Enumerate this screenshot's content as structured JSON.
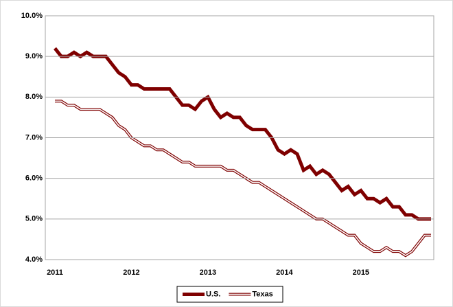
{
  "chart_data": {
    "type": "line",
    "categories": [
      "2011",
      null,
      null,
      null,
      null,
      null,
      null,
      null,
      null,
      null,
      null,
      null,
      "2012",
      null,
      null,
      null,
      null,
      null,
      null,
      null,
      null,
      null,
      null,
      null,
      "2013",
      null,
      null,
      null,
      null,
      null,
      null,
      null,
      null,
      null,
      null,
      null,
      "2014",
      null,
      null,
      null,
      null,
      null,
      null,
      null,
      null,
      null,
      null,
      null,
      "2015",
      null,
      null,
      null,
      null,
      null,
      null,
      null,
      null,
      null,
      null,
      null
    ],
    "series": [
      {
        "name": "U.S.",
        "color": "#7f0000",
        "line_style": "solid",
        "values": [
          9.2,
          9.0,
          9.0,
          9.1,
          9.0,
          9.1,
          9.0,
          9.0,
          9.0,
          8.8,
          8.6,
          8.5,
          8.3,
          8.3,
          8.2,
          8.2,
          8.2,
          8.2,
          8.2,
          8.0,
          7.8,
          7.8,
          7.7,
          7.9,
          8.0,
          7.7,
          7.5,
          7.6,
          7.5,
          7.5,
          7.3,
          7.2,
          7.2,
          7.2,
          7.0,
          6.7,
          6.6,
          6.7,
          6.6,
          6.2,
          6.3,
          6.1,
          6.2,
          6.1,
          5.9,
          5.7,
          5.8,
          5.6,
          5.7,
          5.5,
          5.5,
          5.4,
          5.5,
          5.3,
          5.3,
          5.1,
          5.1,
          5.0,
          5.0,
          5.0
        ]
      },
      {
        "name": "Texas",
        "color": "#7f0000",
        "line_style": "double",
        "values": [
          7.9,
          7.9,
          7.8,
          7.8,
          7.7,
          7.7,
          7.7,
          7.7,
          7.6,
          7.5,
          7.3,
          7.2,
          7.0,
          6.9,
          6.8,
          6.8,
          6.7,
          6.7,
          6.6,
          6.5,
          6.4,
          6.4,
          6.3,
          6.3,
          6.3,
          6.3,
          6.3,
          6.2,
          6.2,
          6.1,
          6.0,
          5.9,
          5.9,
          5.8,
          5.7,
          5.6,
          5.5,
          5.4,
          5.3,
          5.2,
          5.1,
          5.0,
          5.0,
          4.9,
          4.8,
          4.7,
          4.6,
          4.6,
          4.4,
          4.3,
          4.2,
          4.2,
          4.3,
          4.2,
          4.2,
          4.1,
          4.2,
          4.4,
          4.6,
          4.6
        ]
      }
    ],
    "ylim": [
      4,
      10
    ],
    "yticks": [
      {
        "value": 4,
        "label": "4.0%"
      },
      {
        "value": 5,
        "label": "5.0%"
      },
      {
        "value": 6,
        "label": "6.0%"
      },
      {
        "value": 7,
        "label": "7.0%"
      },
      {
        "value": 8,
        "label": "8.0%"
      },
      {
        "value": 9,
        "label": "9.0%"
      },
      {
        "value": 10,
        "label": "10.0%"
      }
    ],
    "grid": true,
    "legend": "bottom"
  }
}
